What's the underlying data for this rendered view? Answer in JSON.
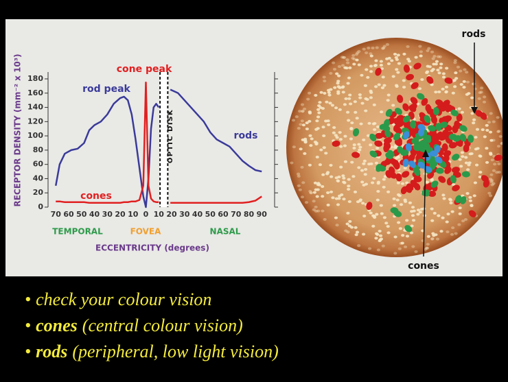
{
  "chart_data": {
    "type": "line",
    "ylabel": "RECEPTOR DENSITY (mm⁻² x 10³)",
    "xlabel": "ECCENTRICITY (degrees)",
    "x": [
      -70,
      -67,
      -63,
      -58,
      -53,
      -48,
      -44,
      -40,
      -35,
      -30,
      -25,
      -20,
      -17,
      -14,
      -11,
      -8,
      -5,
      -2,
      0,
      2,
      4,
      6,
      8,
      10,
      14,
      19,
      25,
      30,
      35,
      40,
      45,
      50,
      55,
      60,
      65,
      70,
      75,
      80,
      85,
      90
    ],
    "series": [
      {
        "name": "rods",
        "color": "#3a3a9a",
        "values": [
          30,
          60,
          75,
          80,
          82,
          90,
          108,
          115,
          120,
          130,
          145,
          153,
          155,
          150,
          130,
          95,
          55,
          15,
          0,
          40,
          110,
          140,
          145,
          140,
          null,
          165,
          160,
          150,
          140,
          130,
          120,
          105,
          95,
          90,
          85,
          75,
          65,
          58,
          52,
          50
        ]
      },
      {
        "name": "cones",
        "color": "#e02020",
        "values": [
          8,
          8,
          7,
          7,
          7,
          7,
          6,
          6,
          6,
          6,
          6,
          6,
          7,
          7,
          8,
          8,
          10,
          30,
          175,
          30,
          12,
          8,
          7,
          7,
          null,
          6,
          6,
          6,
          6,
          6,
          6,
          6,
          6,
          6,
          6,
          6,
          6,
          7,
          9,
          15
        ]
      }
    ],
    "xlim": [
      -76,
      100
    ],
    "ylim": [
      0,
      180
    ],
    "xticks": [
      {
        "value": -70,
        "label": "70"
      },
      {
        "value": -60,
        "label": "60"
      },
      {
        "value": -50,
        "label": "50"
      },
      {
        "value": -40,
        "label": "40"
      },
      {
        "value": -30,
        "label": "30"
      },
      {
        "value": -20,
        "label": "20"
      },
      {
        "value": -10,
        "label": "10"
      },
      0,
      10,
      20,
      30,
      40,
      50,
      60,
      70,
      80,
      90
    ],
    "yticks": [
      0,
      20,
      40,
      60,
      80,
      100,
      120,
      140,
      160,
      180
    ],
    "annotations": [
      {
        "text": "cone peak",
        "color": "#e02020"
      },
      {
        "text": "rod peak",
        "color": "#3a3a9a"
      },
      {
        "text": "rods",
        "color": "#3a3a9a"
      },
      {
        "text": "cones",
        "color": "#e02020"
      },
      {
        "text": "TEMPORAL",
        "color": "#2e9a4a"
      },
      {
        "text": "FOVEA",
        "color": "#f0a030"
      },
      {
        "text": "NASAL",
        "color": "#2e9a4a"
      }
    ],
    "optic_disk": {
      "label": "OPTIC DISK",
      "x": [
        11,
        17
      ]
    }
  },
  "diagram": {
    "labels": [
      "rods",
      "cones"
    ]
  },
  "bullets": [
    {
      "marker": "•",
      "text": "check your colour vision"
    },
    {
      "marker": "•",
      "strong": "cones",
      "text": "(central colour vision)"
    },
    {
      "marker": "•",
      "strong": "rods",
      "text": "(peripheral, low light vision)"
    }
  ]
}
